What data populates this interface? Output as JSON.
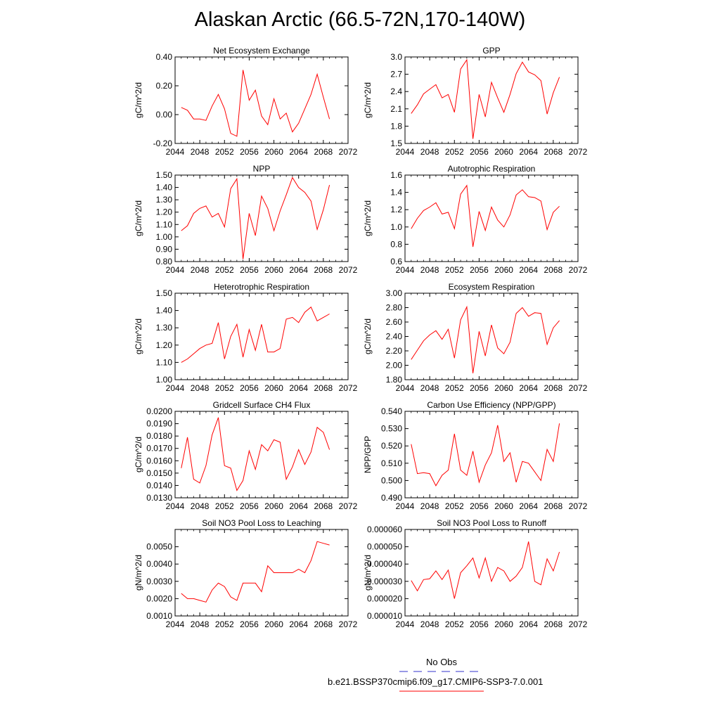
{
  "title": "Alaskan Arctic (66.5-72N,170-140W)",
  "line_color": "#ff0000",
  "obs_color": "#3333cc",
  "legend": {
    "obs_label": "No Obs",
    "case_label": "b.e21.BSSP370cmip6.f09_g17.CMIP6-SSP3-7.0.001"
  },
  "chart_data": [
    {
      "type": "line",
      "title": "Net Ecosystem Exchange",
      "ylabel": "gC/m^2/d",
      "xlim": [
        2044,
        2072
      ],
      "ylim": [
        -0.2,
        0.4
      ],
      "xticks": [
        2044,
        2048,
        2052,
        2056,
        2060,
        2064,
        2068,
        2072
      ],
      "xtick_labels": [
        "2044",
        "2048",
        "2052",
        "2056",
        "2060",
        "2064",
        "2068",
        "2072"
      ],
      "yticks": [
        -0.2,
        0.0,
        0.2,
        0.4
      ],
      "ytick_labels": [
        "-0.20",
        "0.00",
        "0.20",
        "0.40"
      ],
      "x": [
        2045,
        2046,
        2047,
        2048,
        2049,
        2050,
        2051,
        2052,
        2053,
        2054,
        2055,
        2056,
        2057,
        2058,
        2059,
        2060,
        2061,
        2062,
        2063,
        2064,
        2065,
        2066,
        2067,
        2068,
        2069
      ],
      "y": [
        0.05,
        0.03,
        -0.03,
        -0.03,
        -0.04,
        0.06,
        0.14,
        0.04,
        -0.13,
        -0.15,
        0.31,
        0.1,
        0.17,
        -0.01,
        -0.07,
        0.11,
        -0.03,
        0.01,
        -0.12,
        -0.06,
        0.04,
        0.14,
        0.28,
        0.12,
        -0.03
      ]
    },
    {
      "type": "line",
      "title": "GPP",
      "ylabel": "gC/m^2/d",
      "xlim": [
        2044,
        2072
      ],
      "ylim": [
        1.5,
        3.0
      ],
      "xticks": [
        2044,
        2048,
        2052,
        2056,
        2060,
        2064,
        2068,
        2072
      ],
      "xtick_labels": [
        "2044",
        "2048",
        "2052",
        "2056",
        "2060",
        "2064",
        "2068",
        "2072"
      ],
      "yticks": [
        1.5,
        1.8,
        2.1,
        2.4,
        2.7,
        3.0
      ],
      "ytick_labels": [
        "1.5",
        "1.8",
        "2.1",
        "2.4",
        "2.7",
        "3.0"
      ],
      "x": [
        2045,
        2046,
        2047,
        2048,
        2049,
        2050,
        2051,
        2052,
        2053,
        2054,
        2055,
        2056,
        2057,
        2058,
        2059,
        2060,
        2061,
        2062,
        2063,
        2064,
        2065,
        2066,
        2067,
        2068,
        2069
      ],
      "y": [
        2.02,
        2.17,
        2.36,
        2.44,
        2.52,
        2.29,
        2.35,
        2.04,
        2.79,
        2.95,
        1.58,
        2.35,
        1.96,
        2.56,
        2.29,
        2.04,
        2.35,
        2.71,
        2.91,
        2.74,
        2.69,
        2.59,
        2.01,
        2.38,
        2.65
      ]
    },
    {
      "type": "line",
      "title": "NPP",
      "ylabel": "gC/m^2/d",
      "xlim": [
        2044,
        2072
      ],
      "ylim": [
        0.8,
        1.5
      ],
      "xticks": [
        2044,
        2048,
        2052,
        2056,
        2060,
        2064,
        2068,
        2072
      ],
      "xtick_labels": [
        "2044",
        "2048",
        "2052",
        "2056",
        "2060",
        "2064",
        "2068",
        "2072"
      ],
      "yticks": [
        0.8,
        0.9,
        1.0,
        1.1,
        1.2,
        1.3,
        1.4,
        1.5
      ],
      "ytick_labels": [
        "0.80",
        "0.90",
        "1.00",
        "1.10",
        "1.20",
        "1.30",
        "1.40",
        "1.50"
      ],
      "x": [
        2045,
        2046,
        2047,
        2048,
        2049,
        2050,
        2051,
        2052,
        2053,
        2054,
        2055,
        2056,
        2057,
        2058,
        2059,
        2060,
        2061,
        2062,
        2063,
        2064,
        2065,
        2066,
        2067,
        2068,
        2069
      ],
      "y": [
        1.05,
        1.09,
        1.19,
        1.23,
        1.25,
        1.16,
        1.19,
        1.08,
        1.39,
        1.47,
        0.82,
        1.19,
        1.01,
        1.33,
        1.23,
        1.05,
        1.21,
        1.34,
        1.48,
        1.4,
        1.36,
        1.29,
        1.06,
        1.22,
        1.42
      ]
    },
    {
      "type": "line",
      "title": "Autotrophic Respiration",
      "ylabel": "gC/m^2/d",
      "xlim": [
        2044,
        2072
      ],
      "ylim": [
        0.6,
        1.6
      ],
      "xticks": [
        2044,
        2048,
        2052,
        2056,
        2060,
        2064,
        2068,
        2072
      ],
      "xtick_labels": [
        "2044",
        "2048",
        "2052",
        "2056",
        "2060",
        "2064",
        "2068",
        "2072"
      ],
      "yticks": [
        0.6,
        0.8,
        1.0,
        1.2,
        1.4,
        1.6
      ],
      "ytick_labels": [
        "0.6",
        "0.8",
        "1.0",
        "1.2",
        "1.4",
        "1.6"
      ],
      "x": [
        2045,
        2046,
        2047,
        2048,
        2049,
        2050,
        2051,
        2052,
        2053,
        2054,
        2055,
        2056,
        2057,
        2058,
        2059,
        2060,
        2061,
        2062,
        2063,
        2064,
        2065,
        2066,
        2067,
        2068,
        2069
      ],
      "y": [
        0.98,
        1.1,
        1.19,
        1.23,
        1.28,
        1.15,
        1.17,
        0.98,
        1.38,
        1.48,
        0.77,
        1.18,
        0.96,
        1.23,
        1.08,
        1.0,
        1.14,
        1.37,
        1.43,
        1.35,
        1.34,
        1.3,
        0.97,
        1.17,
        1.24
      ]
    },
    {
      "type": "line",
      "title": "Heterotrophic Respiration",
      "ylabel": "gC/m^2/d",
      "xlim": [
        2044,
        2072
      ],
      "ylim": [
        1.0,
        1.5
      ],
      "xticks": [
        2044,
        2048,
        2052,
        2056,
        2060,
        2064,
        2068,
        2072
      ],
      "xtick_labels": [
        "2044",
        "2048",
        "2052",
        "2056",
        "2060",
        "2064",
        "2068",
        "2072"
      ],
      "yticks": [
        1.0,
        1.1,
        1.2,
        1.3,
        1.4,
        1.5
      ],
      "ytick_labels": [
        "1.00",
        "1.10",
        "1.20",
        "1.30",
        "1.40",
        "1.50"
      ],
      "x": [
        2045,
        2046,
        2047,
        2048,
        2049,
        2050,
        2051,
        2052,
        2053,
        2054,
        2055,
        2056,
        2057,
        2058,
        2059,
        2060,
        2061,
        2062,
        2063,
        2064,
        2065,
        2066,
        2067,
        2068,
        2069
      ],
      "y": [
        1.1,
        1.12,
        1.15,
        1.18,
        1.2,
        1.21,
        1.33,
        1.12,
        1.25,
        1.32,
        1.13,
        1.29,
        1.17,
        1.32,
        1.16,
        1.16,
        1.18,
        1.35,
        1.36,
        1.33,
        1.39,
        1.42,
        1.34,
        1.36,
        1.38
      ]
    },
    {
      "type": "line",
      "title": "Ecosystem Respiration",
      "ylabel": "gC/m^2/d",
      "xlim": [
        2044,
        2072
      ],
      "ylim": [
        1.8,
        3.0
      ],
      "xticks": [
        2044,
        2048,
        2052,
        2056,
        2060,
        2064,
        2068,
        2072
      ],
      "xtick_labels": [
        "2044",
        "2048",
        "2052",
        "2056",
        "2060",
        "2064",
        "2068",
        "2072"
      ],
      "yticks": [
        1.8,
        2.0,
        2.2,
        2.4,
        2.6,
        2.8,
        3.0
      ],
      "ytick_labels": [
        "1.80",
        "2.00",
        "2.20",
        "2.40",
        "2.60",
        "2.80",
        "3.00"
      ],
      "x": [
        2045,
        2046,
        2047,
        2048,
        2049,
        2050,
        2051,
        2052,
        2053,
        2054,
        2055,
        2056,
        2057,
        2058,
        2059,
        2060,
        2061,
        2062,
        2063,
        2064,
        2065,
        2066,
        2067,
        2068,
        2069
      ],
      "y": [
        2.08,
        2.21,
        2.34,
        2.42,
        2.48,
        2.36,
        2.5,
        2.1,
        2.63,
        2.81,
        1.89,
        2.47,
        2.13,
        2.56,
        2.24,
        2.16,
        2.32,
        2.72,
        2.8,
        2.68,
        2.73,
        2.72,
        2.29,
        2.52,
        2.62
      ]
    },
    {
      "type": "line",
      "title": "Gridcell Surface CH4 Flux",
      "ylabel": "gC/m^2/d",
      "xlim": [
        2044,
        2072
      ],
      "ylim": [
        0.013,
        0.02
      ],
      "xticks": [
        2044,
        2048,
        2052,
        2056,
        2060,
        2064,
        2068,
        2072
      ],
      "xtick_labels": [
        "2044",
        "2048",
        "2052",
        "2056",
        "2060",
        "2064",
        "2068",
        "2072"
      ],
      "yticks": [
        0.013,
        0.014,
        0.015,
        0.016,
        0.017,
        0.018,
        0.019,
        0.02
      ],
      "ytick_labels": [
        "0.0130",
        "0.0140",
        "0.0150",
        "0.0160",
        "0.0170",
        "0.0180",
        "0.0190",
        "0.0200"
      ],
      "x": [
        2045,
        2046,
        2047,
        2048,
        2049,
        2050,
        2051,
        2052,
        2053,
        2054,
        2055,
        2056,
        2057,
        2058,
        2059,
        2060,
        2061,
        2062,
        2063,
        2064,
        2065,
        2066,
        2067,
        2068,
        2069
      ],
      "y": [
        0.0154,
        0.0179,
        0.0145,
        0.0142,
        0.0156,
        0.0181,
        0.0195,
        0.0156,
        0.0154,
        0.0136,
        0.0144,
        0.0168,
        0.0153,
        0.0173,
        0.0168,
        0.0177,
        0.0175,
        0.0145,
        0.0155,
        0.0169,
        0.0157,
        0.0167,
        0.0187,
        0.0183,
        0.0169
      ]
    },
    {
      "type": "line",
      "title": "Carbon Use Efficiency (NPP/GPP)",
      "ylabel": "NPP/GPP",
      "xlim": [
        2044,
        2072
      ],
      "ylim": [
        0.49,
        0.54
      ],
      "xticks": [
        2044,
        2048,
        2052,
        2056,
        2060,
        2064,
        2068,
        2072
      ],
      "xtick_labels": [
        "2044",
        "2048",
        "2052",
        "2056",
        "2060",
        "2064",
        "2068",
        "2072"
      ],
      "yticks": [
        0.49,
        0.5,
        0.51,
        0.52,
        0.53,
        0.54
      ],
      "ytick_labels": [
        "0.490",
        "0.500",
        "0.510",
        "0.520",
        "0.530",
        "0.540"
      ],
      "x": [
        2045,
        2046,
        2047,
        2048,
        2049,
        2050,
        2051,
        2052,
        2053,
        2054,
        2055,
        2056,
        2057,
        2058,
        2059,
        2060,
        2061,
        2062,
        2063,
        2064,
        2065,
        2066,
        2067,
        2068,
        2069
      ],
      "y": [
        0.521,
        0.504,
        0.5045,
        0.504,
        0.497,
        0.503,
        0.506,
        0.527,
        0.506,
        0.503,
        0.517,
        0.499,
        0.509,
        0.516,
        0.532,
        0.511,
        0.516,
        0.499,
        0.511,
        0.51,
        0.505,
        0.5,
        0.518,
        0.511,
        0.533
      ]
    },
    {
      "type": "line",
      "title": "Soil NO3 Pool Loss to Leaching",
      "ylabel": "gN/m^2/d",
      "xlim": [
        2044,
        2072
      ],
      "ylim": [
        0.001,
        0.006
      ],
      "xticks": [
        2044,
        2048,
        2052,
        2056,
        2060,
        2064,
        2068,
        2072
      ],
      "xtick_labels": [
        "2044",
        "2048",
        "2052",
        "2056",
        "2060",
        "2064",
        "2068",
        "2072"
      ],
      "yticks": [
        0.001,
        0.002,
        0.003,
        0.004,
        0.005
      ],
      "ytick_labels": [
        "0.0010",
        "0.0020",
        "0.0030",
        "0.0040",
        "0.0050"
      ],
      "x": [
        2045,
        2046,
        2047,
        2048,
        2049,
        2050,
        2051,
        2052,
        2053,
        2054,
        2055,
        2056,
        2057,
        2058,
        2059,
        2060,
        2061,
        2062,
        2063,
        2064,
        2065,
        2066,
        2067,
        2068,
        2069
      ],
      "y": [
        0.0023,
        0.002,
        0.002,
        0.0019,
        0.0018,
        0.0025,
        0.0029,
        0.0027,
        0.0021,
        0.0019,
        0.0029,
        0.0029,
        0.0029,
        0.0024,
        0.0039,
        0.0035,
        0.0035,
        0.0035,
        0.0035,
        0.0037,
        0.0035,
        0.0042,
        0.0053,
        0.0052,
        0.0051
      ]
    },
    {
      "type": "line",
      "title": "Soil NO3 Pool Loss to Runoff",
      "ylabel": "gN/m^2/d",
      "xlim": [
        2044,
        2072
      ],
      "ylim": [
        1e-05,
        6e-05
      ],
      "xticks": [
        2044,
        2048,
        2052,
        2056,
        2060,
        2064,
        2068,
        2072
      ],
      "xtick_labels": [
        "2044",
        "2048",
        "2052",
        "2056",
        "2060",
        "2064",
        "2068",
        "2072"
      ],
      "yticks": [
        1e-05,
        2e-05,
        3e-05,
        4e-05,
        5e-05,
        6e-05
      ],
      "ytick_labels": [
        "0.000010",
        "0.000020",
        "0.000030",
        "0.000040",
        "0.000050",
        "0.000060"
      ],
      "x": [
        2045,
        2046,
        2047,
        2048,
        2049,
        2050,
        2051,
        2052,
        2053,
        2054,
        2055,
        2056,
        2057,
        2058,
        2059,
        2060,
        2061,
        2062,
        2063,
        2064,
        2065,
        2066,
        2067,
        2068,
        2069
      ],
      "y": [
        3.05e-05,
        2.45e-05,
        3.1e-05,
        3.15e-05,
        3.6e-05,
        3.1e-05,
        3.65e-05,
        2e-05,
        3.5e-05,
        3.9e-05,
        4.35e-05,
        3.2e-05,
        4.35e-05,
        3e-05,
        3.8e-05,
        3.6e-05,
        3e-05,
        3.3e-05,
        3.8e-05,
        5.3e-05,
        3e-05,
        2.8e-05,
        4.3e-05,
        3.6e-05,
        4.7e-05
      ]
    }
  ]
}
